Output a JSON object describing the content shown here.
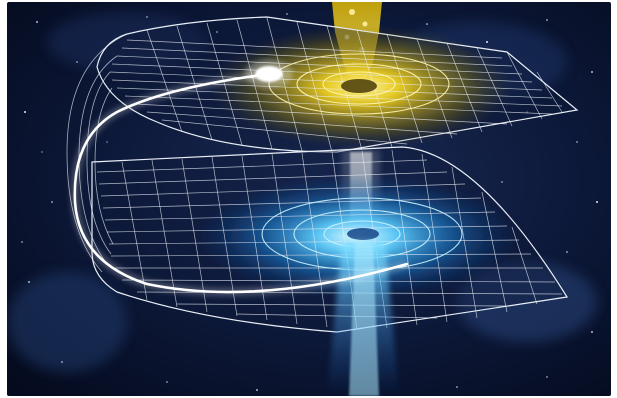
{
  "image": {
    "subject": "wormhole",
    "colors": {
      "space_background": "#0a1530",
      "upper_glow": "#f2d320",
      "lower_glow": "#33b8ff",
      "grid_lines": "#e9eef6",
      "light_trail": "#ffffff"
    }
  }
}
